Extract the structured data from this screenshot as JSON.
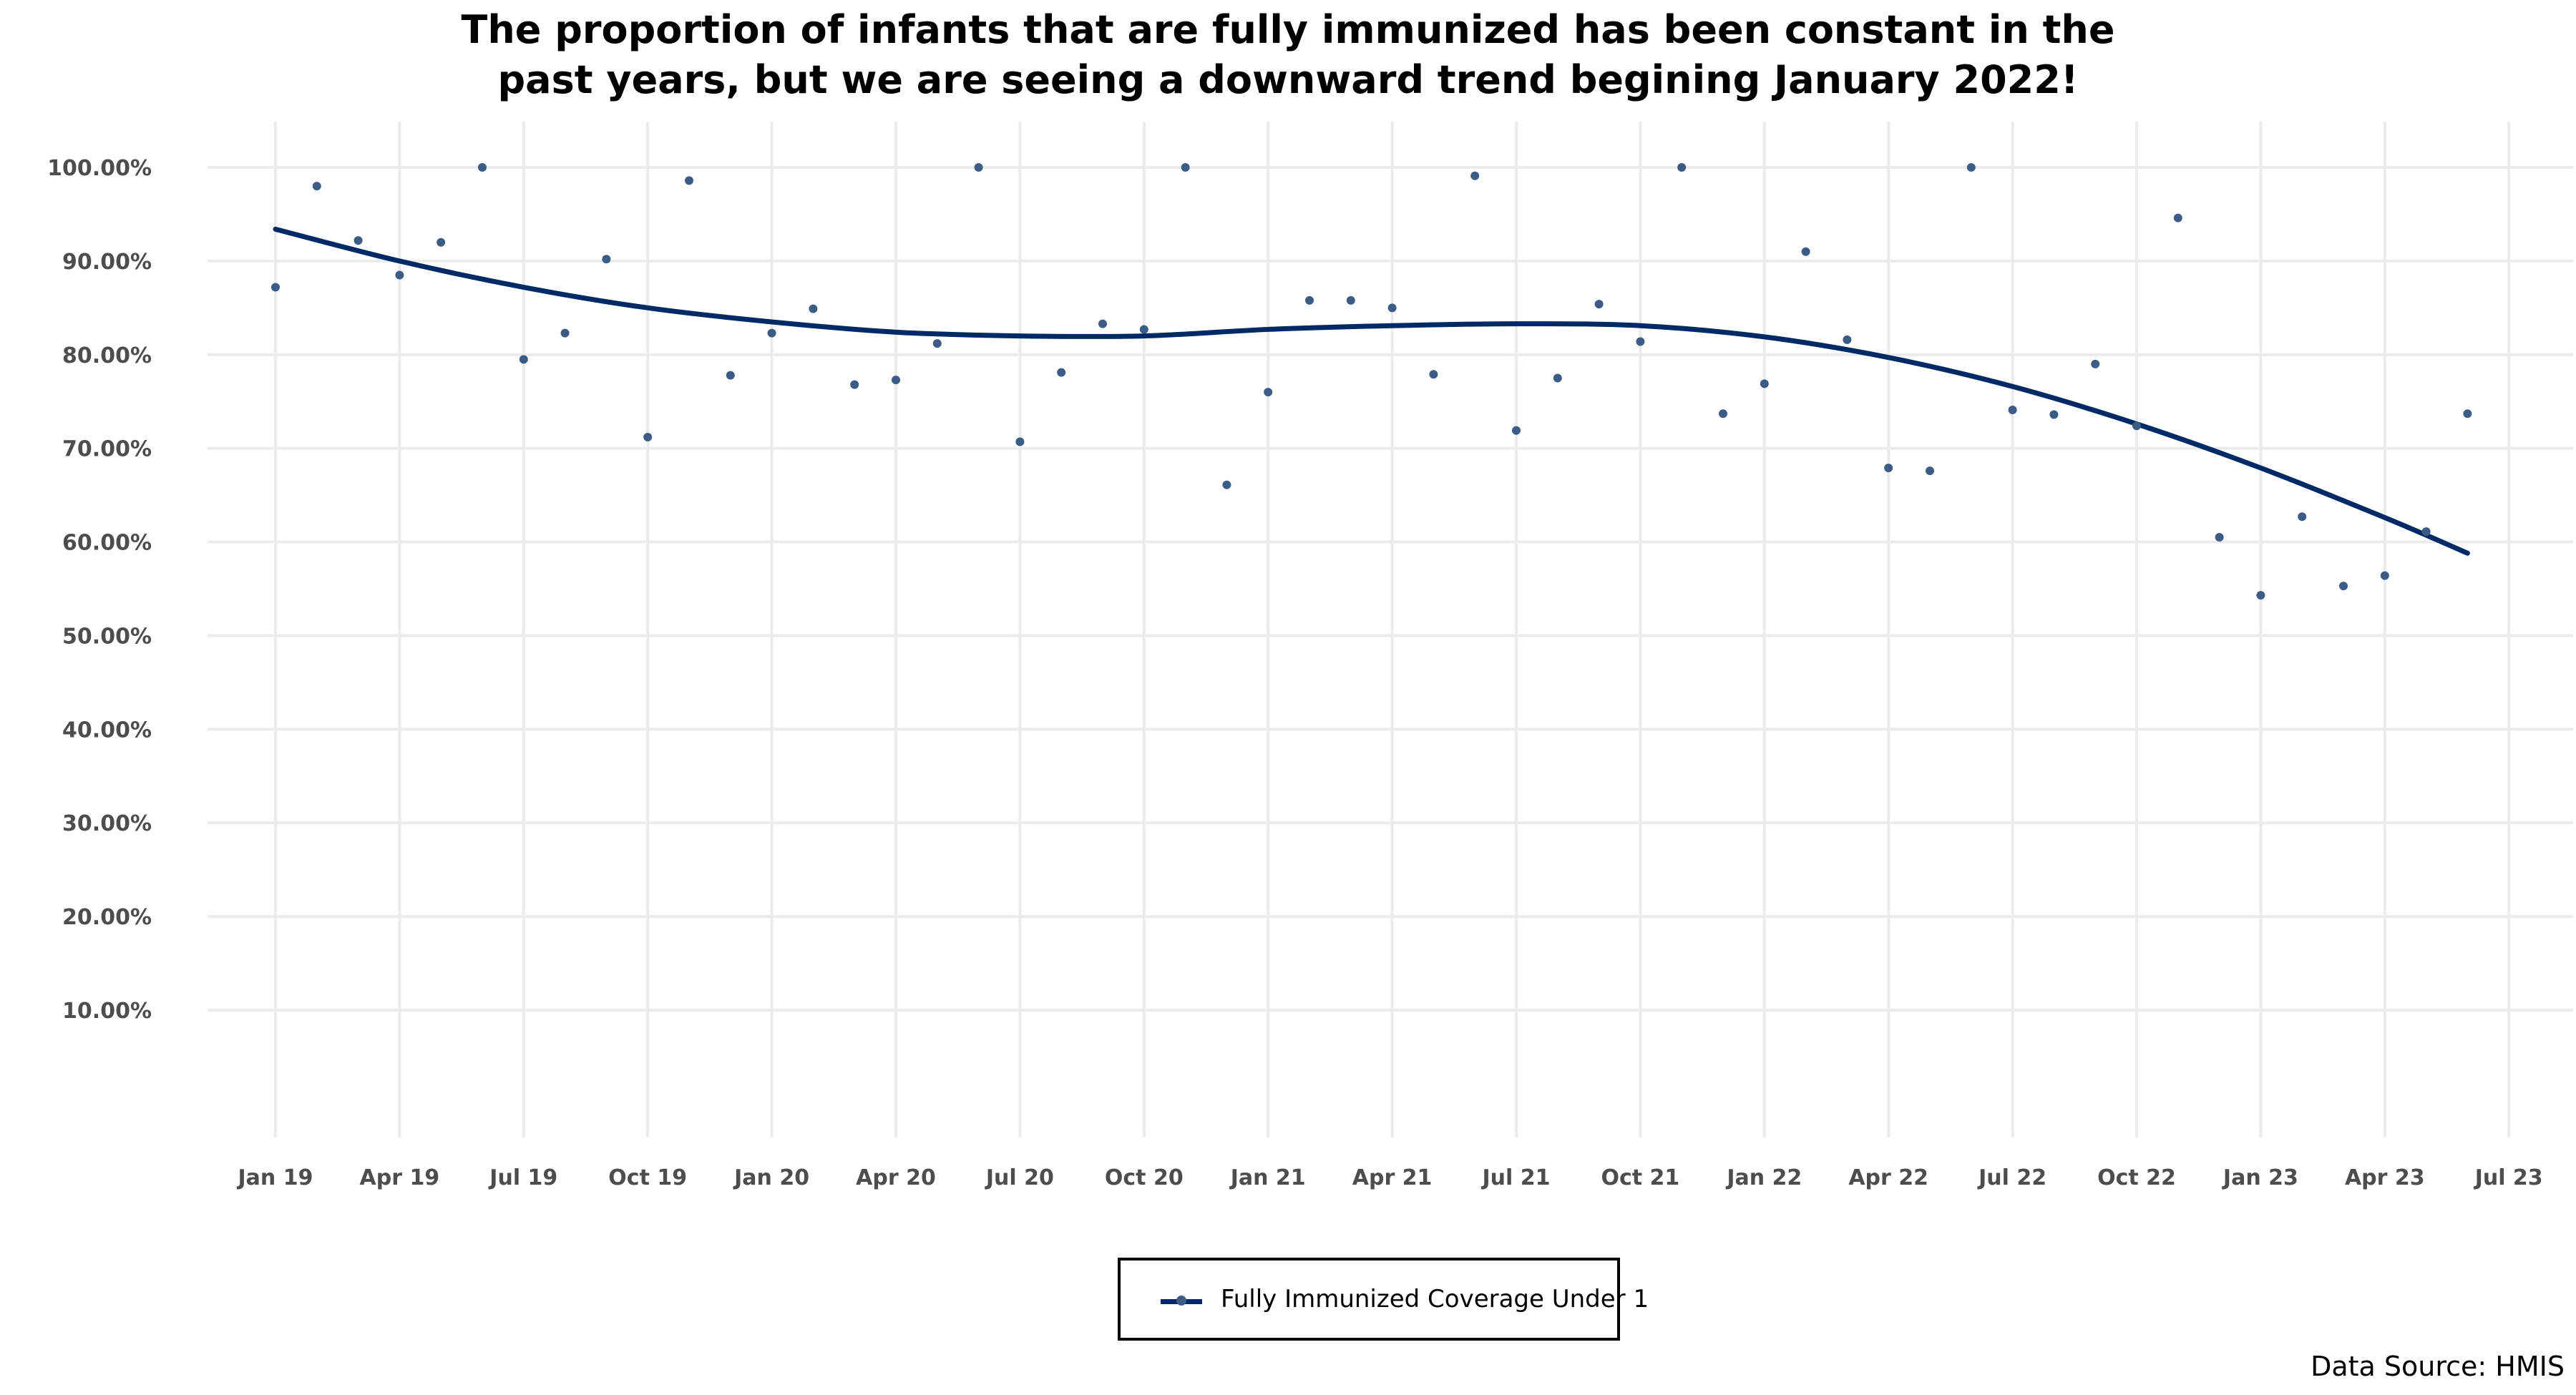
{
  "chart_data": {
    "type": "scatter",
    "title_lines": [
      "The proportion of infants that are fully immunized has been constant in the",
      "past years, but we are seeing a downward trend begining January 2022!"
    ],
    "xlabel": "",
    "ylabel": "",
    "x_ticks": [
      {
        "date": "2019-01",
        "label": "Jan 19"
      },
      {
        "date": "2019-04",
        "label": "Apr 19"
      },
      {
        "date": "2019-07",
        "label": "Jul 19"
      },
      {
        "date": "2019-10",
        "label": "Oct 19"
      },
      {
        "date": "2020-01",
        "label": "Jan 20"
      },
      {
        "date": "2020-04",
        "label": "Apr 20"
      },
      {
        "date": "2020-07",
        "label": "Jul 20"
      },
      {
        "date": "2020-10",
        "label": "Oct 20"
      },
      {
        "date": "2021-01",
        "label": "Jan 21"
      },
      {
        "date": "2021-04",
        "label": "Apr 21"
      },
      {
        "date": "2021-07",
        "label": "Jul 21"
      },
      {
        "date": "2021-10",
        "label": "Oct 21"
      },
      {
        "date": "2022-01",
        "label": "Jan 22"
      },
      {
        "date": "2022-04",
        "label": "Apr 22"
      },
      {
        "date": "2022-07",
        "label": "Jul 22"
      },
      {
        "date": "2022-10",
        "label": "Oct 22"
      },
      {
        "date": "2023-01",
        "label": "Jan 23"
      },
      {
        "date": "2023-04",
        "label": "Apr 23"
      },
      {
        "date": "2023-07",
        "label": "Jul 23"
      }
    ],
    "y_ticks": [
      10,
      20,
      30,
      40,
      50,
      60,
      70,
      80,
      90,
      100
    ],
    "y_tick_labels": [
      "10.00%",
      "20.00%",
      "30.00%",
      "40.00%",
      "50.00%",
      "60.00%",
      "70.00%",
      "80.00%",
      "90.00%",
      "100.00%"
    ],
    "xlim": [
      "2018-12",
      "2023-08"
    ],
    "ylim": [
      0,
      105
    ],
    "grid": true,
    "legend_position": "bottom",
    "series": [
      {
        "name": "Fully Immunized Coverage Under 1",
        "color": "#3d5c85",
        "trend_color": "#002a66",
        "points": [
          {
            "x": "2019-01",
            "y": 87.2
          },
          {
            "x": "2019-02",
            "y": 98.0
          },
          {
            "x": "2019-03",
            "y": 92.2
          },
          {
            "x": "2019-04",
            "y": 88.5
          },
          {
            "x": "2019-05",
            "y": 92.0
          },
          {
            "x": "2019-06",
            "y": 100.0
          },
          {
            "x": "2019-07",
            "y": 79.5
          },
          {
            "x": "2019-08",
            "y": 82.3
          },
          {
            "x": "2019-09",
            "y": 90.2
          },
          {
            "x": "2019-10",
            "y": 71.2
          },
          {
            "x": "2019-11",
            "y": 98.6
          },
          {
            "x": "2019-12",
            "y": 77.8
          },
          {
            "x": "2020-01",
            "y": 82.3
          },
          {
            "x": "2020-02",
            "y": 84.9
          },
          {
            "x": "2020-03",
            "y": 76.8
          },
          {
            "x": "2020-04",
            "y": 77.3
          },
          {
            "x": "2020-05",
            "y": 81.2
          },
          {
            "x": "2020-06",
            "y": 100.0
          },
          {
            "x": "2020-07",
            "y": 70.7
          },
          {
            "x": "2020-08",
            "y": 78.1
          },
          {
            "x": "2020-09",
            "y": 83.3
          },
          {
            "x": "2020-10",
            "y": 82.7
          },
          {
            "x": "2020-11",
            "y": 100.0
          },
          {
            "x": "2020-12",
            "y": 66.1
          },
          {
            "x": "2021-01",
            "y": 76.0
          },
          {
            "x": "2021-02",
            "y": 85.8
          },
          {
            "x": "2021-03",
            "y": 85.8
          },
          {
            "x": "2021-04",
            "y": 85.0
          },
          {
            "x": "2021-05",
            "y": 77.9
          },
          {
            "x": "2021-06",
            "y": 99.1
          },
          {
            "x": "2021-07",
            "y": 71.9
          },
          {
            "x": "2021-08",
            "y": 77.5
          },
          {
            "x": "2021-09",
            "y": 85.4
          },
          {
            "x": "2021-10",
            "y": 81.4
          },
          {
            "x": "2021-11",
            "y": 100.0
          },
          {
            "x": "2021-12",
            "y": 73.7
          },
          {
            "x": "2022-01",
            "y": 76.9
          },
          {
            "x": "2022-02",
            "y": 91.0
          },
          {
            "x": "2022-03",
            "y": 81.6
          },
          {
            "x": "2022-04",
            "y": 67.9
          },
          {
            "x": "2022-05",
            "y": 67.6
          },
          {
            "x": "2022-06",
            "y": 100.0
          },
          {
            "x": "2022-07",
            "y": 74.1
          },
          {
            "x": "2022-08",
            "y": 73.6
          },
          {
            "x": "2022-09",
            "y": 79.0
          },
          {
            "x": "2022-10",
            "y": 72.4
          },
          {
            "x": "2022-11",
            "y": 94.6
          },
          {
            "x": "2022-12",
            "y": 60.5
          },
          {
            "x": "2023-01",
            "y": 54.3
          },
          {
            "x": "2023-02",
            "y": 62.7
          },
          {
            "x": "2023-03",
            "y": 55.3
          },
          {
            "x": "2023-04",
            "y": 56.4
          },
          {
            "x": "2023-05",
            "y": 61.1
          },
          {
            "x": "2023-06",
            "y": 73.7
          }
        ],
        "trend": [
          {
            "x": "2019-01",
            "y": 93.4
          },
          {
            "x": "2019-04",
            "y": 90.0
          },
          {
            "x": "2019-07",
            "y": 87.2
          },
          {
            "x": "2019-10",
            "y": 85.0
          },
          {
            "x": "2020-01",
            "y": 83.5
          },
          {
            "x": "2020-04",
            "y": 82.4
          },
          {
            "x": "2020-07",
            "y": 82.0
          },
          {
            "x": "2020-10",
            "y": 82.0
          },
          {
            "x": "2021-01",
            "y": 82.7
          },
          {
            "x": "2021-04",
            "y": 83.1
          },
          {
            "x": "2021-07",
            "y": 83.3
          },
          {
            "x": "2021-10",
            "y": 83.1
          },
          {
            "x": "2022-01",
            "y": 81.9
          },
          {
            "x": "2022-04",
            "y": 79.7
          },
          {
            "x": "2022-07",
            "y": 76.6
          },
          {
            "x": "2022-10",
            "y": 72.6
          },
          {
            "x": "2023-01",
            "y": 67.9
          },
          {
            "x": "2023-04",
            "y": 62.6
          },
          {
            "x": "2023-06",
            "y": 58.8
          }
        ]
      }
    ]
  },
  "legend": {
    "label": "Fully Immunized Coverage Under 1"
  },
  "footer": {
    "source": "Data Source: HMIS"
  }
}
